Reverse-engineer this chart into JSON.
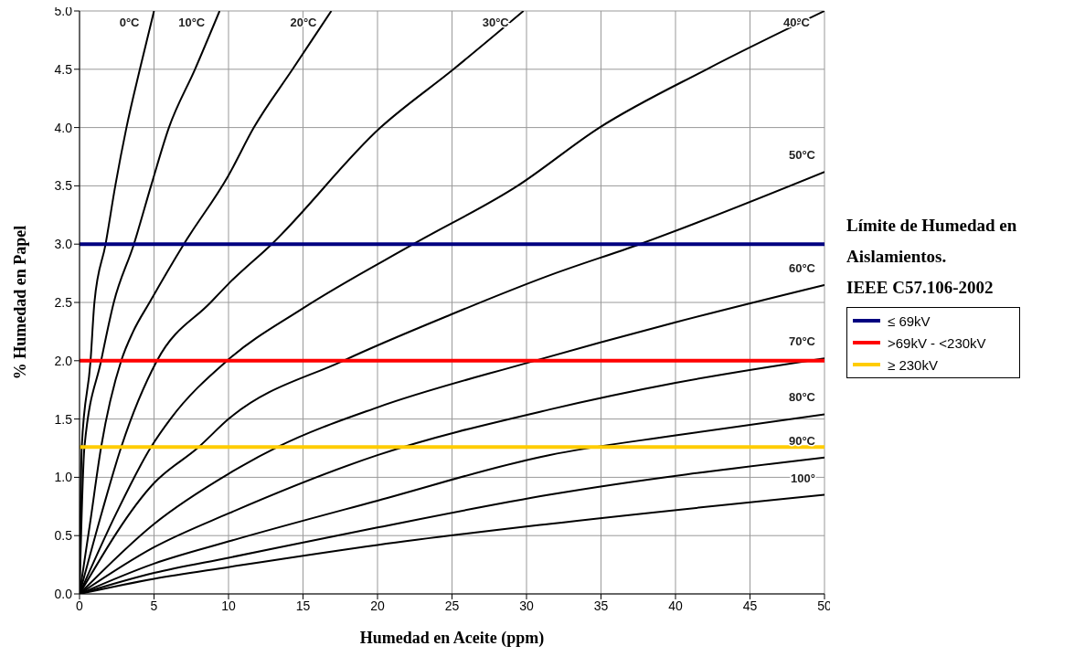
{
  "chart_data": {
    "type": "line",
    "xlabel": "Humedad en Aceite (ppm)",
    "ylabel": "% Humedad en Papel",
    "legend_title": "Límite de Humedad en\nAislamientos.\nIEEE C57.106-2002",
    "xlim": [
      0,
      50
    ],
    "xticks": [
      0,
      5,
      10,
      15,
      20,
      25,
      30,
      35,
      40,
      45,
      50
    ],
    "ylim": [
      0,
      5
    ],
    "yticks": [
      {
        "value": 0,
        "label": "0.0"
      },
      0.5,
      {
        "value": 1,
        "label": "1.0"
      },
      1.5,
      {
        "value": 2,
        "label": "2.0"
      },
      2.5,
      {
        "value": 3,
        "label": "3.0"
      },
      3.5,
      {
        "value": 4,
        "label": "4.0"
      },
      4.5,
      {
        "value": 5,
        "label": "5.0"
      }
    ],
    "grid": true,
    "legend": "right",
    "marker": "none",
    "line_style": "solid",
    "series": [
      {
        "name": "0°C",
        "color": "#000000",
        "x": [
          0,
          0.15,
          0.74,
          1.0,
          1.75,
          2.4,
          3.15,
          4.05,
          5.0
        ],
        "values": [
          0,
          1.26,
          2.0,
          2.5,
          3.0,
          3.5,
          4.0,
          4.5,
          5.0
        ]
      },
      {
        "name": "10°C",
        "color": "#000000",
        "x": [
          0,
          0.33,
          1.45,
          2.3,
          3.65,
          4.8,
          6.0,
          7.75,
          9.4
        ],
        "values": [
          0,
          1.26,
          2.0,
          2.5,
          3.0,
          3.5,
          4.0,
          4.5,
          5.0
        ]
      },
      {
        "name": "20°C",
        "color": "#000000",
        "x": [
          0,
          0.7,
          1.45,
          2.8,
          3.6,
          4.7,
          7.0,
          10.0,
          11.7,
          14.3,
          16.9
        ],
        "values": [
          0,
          0.6,
          1.26,
          2.0,
          2.25,
          2.5,
          3.0,
          3.59,
          4.0,
          4.5,
          5.0
        ]
      },
      {
        "name": "30°C",
        "color": "#000000",
        "x": [
          0,
          1.5,
          2.8,
          5.2,
          8.8,
          10.0,
          12.9,
          20.2,
          25.1,
          29.8
        ],
        "values": [
          0,
          0.7,
          1.26,
          2.0,
          2.5,
          2.66,
          3.0,
          4.0,
          4.5,
          5.0
        ]
      },
      {
        "name": "40°C",
        "color": "#000000",
        "x": [
          0,
          2.5,
          4.8,
          6.1,
          9.9,
          15.0,
          22.4,
          29.4,
          34.9,
          42.1,
          50.0
        ],
        "values": [
          0,
          0.7,
          1.26,
          1.5,
          2.0,
          2.45,
          3.0,
          3.5,
          4.0,
          4.5,
          5.0
        ]
      },
      {
        "name": "50°C",
        "color": "#000000",
        "x": [
          0,
          5,
          8.0,
          10,
          17.7,
          25,
          31.5,
          37.6,
          50
        ],
        "values": [
          0,
          0.95,
          1.26,
          1.5,
          2.0,
          2.4,
          2.73,
          3.0,
          3.62
        ]
      },
      {
        "name": "60°C",
        "color": "#000000",
        "x": [
          0,
          5,
          10,
          13.3,
          20,
          30,
          40,
          50
        ],
        "values": [
          0,
          0.6,
          1.03,
          1.26,
          1.6,
          1.98,
          2.33,
          2.65
        ]
      },
      {
        "name": "70°C",
        "color": "#000000",
        "x": [
          0,
          5,
          10,
          20,
          31.5,
          40,
          50
        ],
        "values": [
          0,
          0.4,
          0.69,
          1.19,
          1.58,
          1.81,
          2.02
        ]
      },
      {
        "name": "80°C",
        "color": "#000000",
        "x": [
          0,
          5,
          10,
          20,
          31.5,
          40,
          50
        ],
        "values": [
          0,
          0.26,
          0.45,
          0.8,
          1.19,
          1.36,
          1.54
        ]
      },
      {
        "name": "90°C",
        "color": "#000000",
        "x": [
          0,
          5,
          10,
          20,
          31.5,
          50
        ],
        "values": [
          0,
          0.18,
          0.31,
          0.57,
          0.85,
          1.17
        ]
      },
      {
        "name": "100°",
        "color": "#000000",
        "x": [
          0,
          5,
          10,
          20,
          31.5,
          50
        ],
        "values": [
          0,
          0.13,
          0.23,
          0.42,
          0.6,
          0.85
        ]
      }
    ],
    "ref_lines": [
      {
        "axis": "y",
        "value": 3.0,
        "label": "≤ 69kV",
        "color": "#000080"
      },
      {
        "axis": "y",
        "value": 2.0,
        "label": ">69kV - <230kV",
        "color": "#ff0000"
      },
      {
        "axis": "y",
        "value": 1.26,
        "label": "≥ 230kV",
        "color": "#ffcc00"
      }
    ]
  }
}
